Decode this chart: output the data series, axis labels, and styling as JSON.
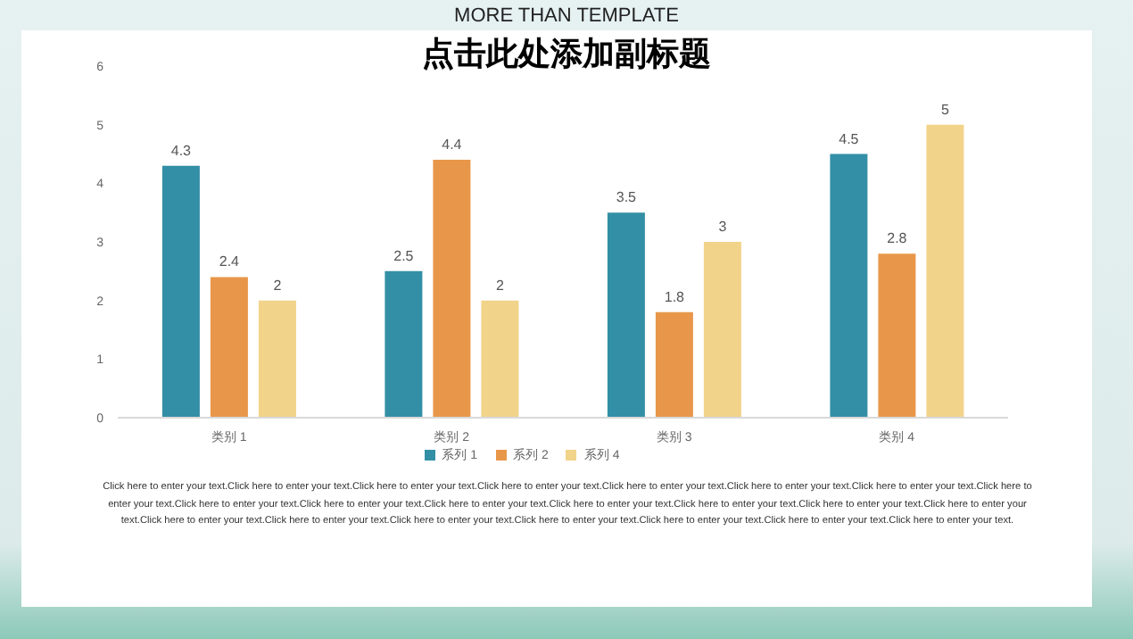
{
  "chart_data": {
    "type": "bar",
    "title": "MORE THAN TEMPLATE",
    "subtitle": "点击此处添加副标题",
    "categories": [
      "类别 1",
      "类别 2",
      "类别 3",
      "类别 4"
    ],
    "series": [
      {
        "name": "系列 1",
        "color": "#338fa6",
        "values": [
          4.3,
          2.5,
          3.5,
          4.5
        ]
      },
      {
        "name": "系列 2",
        "color": "#e8974a",
        "values": [
          2.4,
          4.4,
          1.8,
          2.8
        ]
      },
      {
        "name": "系列 4",
        "color": "#f2d38a",
        "values": [
          2,
          2,
          3,
          5
        ]
      }
    ],
    "ylim": [
      0,
      6
    ],
    "yticks": [
      0,
      1,
      2,
      3,
      4,
      5,
      6
    ],
    "grid": false,
    "legend": "bottom",
    "data_labels": true,
    "annotations": [
      "Click here to enter your text.Click here to enter your text.Click here to enter your text.Click here to enter your text.Click here to enter your text.Click here to enter your text.Click here to enter your text.Click here to enter your text.Click here to enter your text.Click here to enter your text.Click here to enter your text.Click here to enter your text.Click here to enter your text.Click here to enter your text.Click here to enter your text.Click here to enter your text.Click here to enter your text.Click here to enter your text.Click here to enter your text.Click here to enter your text.Click here to enter your text.Click here to enter your text."
    ]
  }
}
